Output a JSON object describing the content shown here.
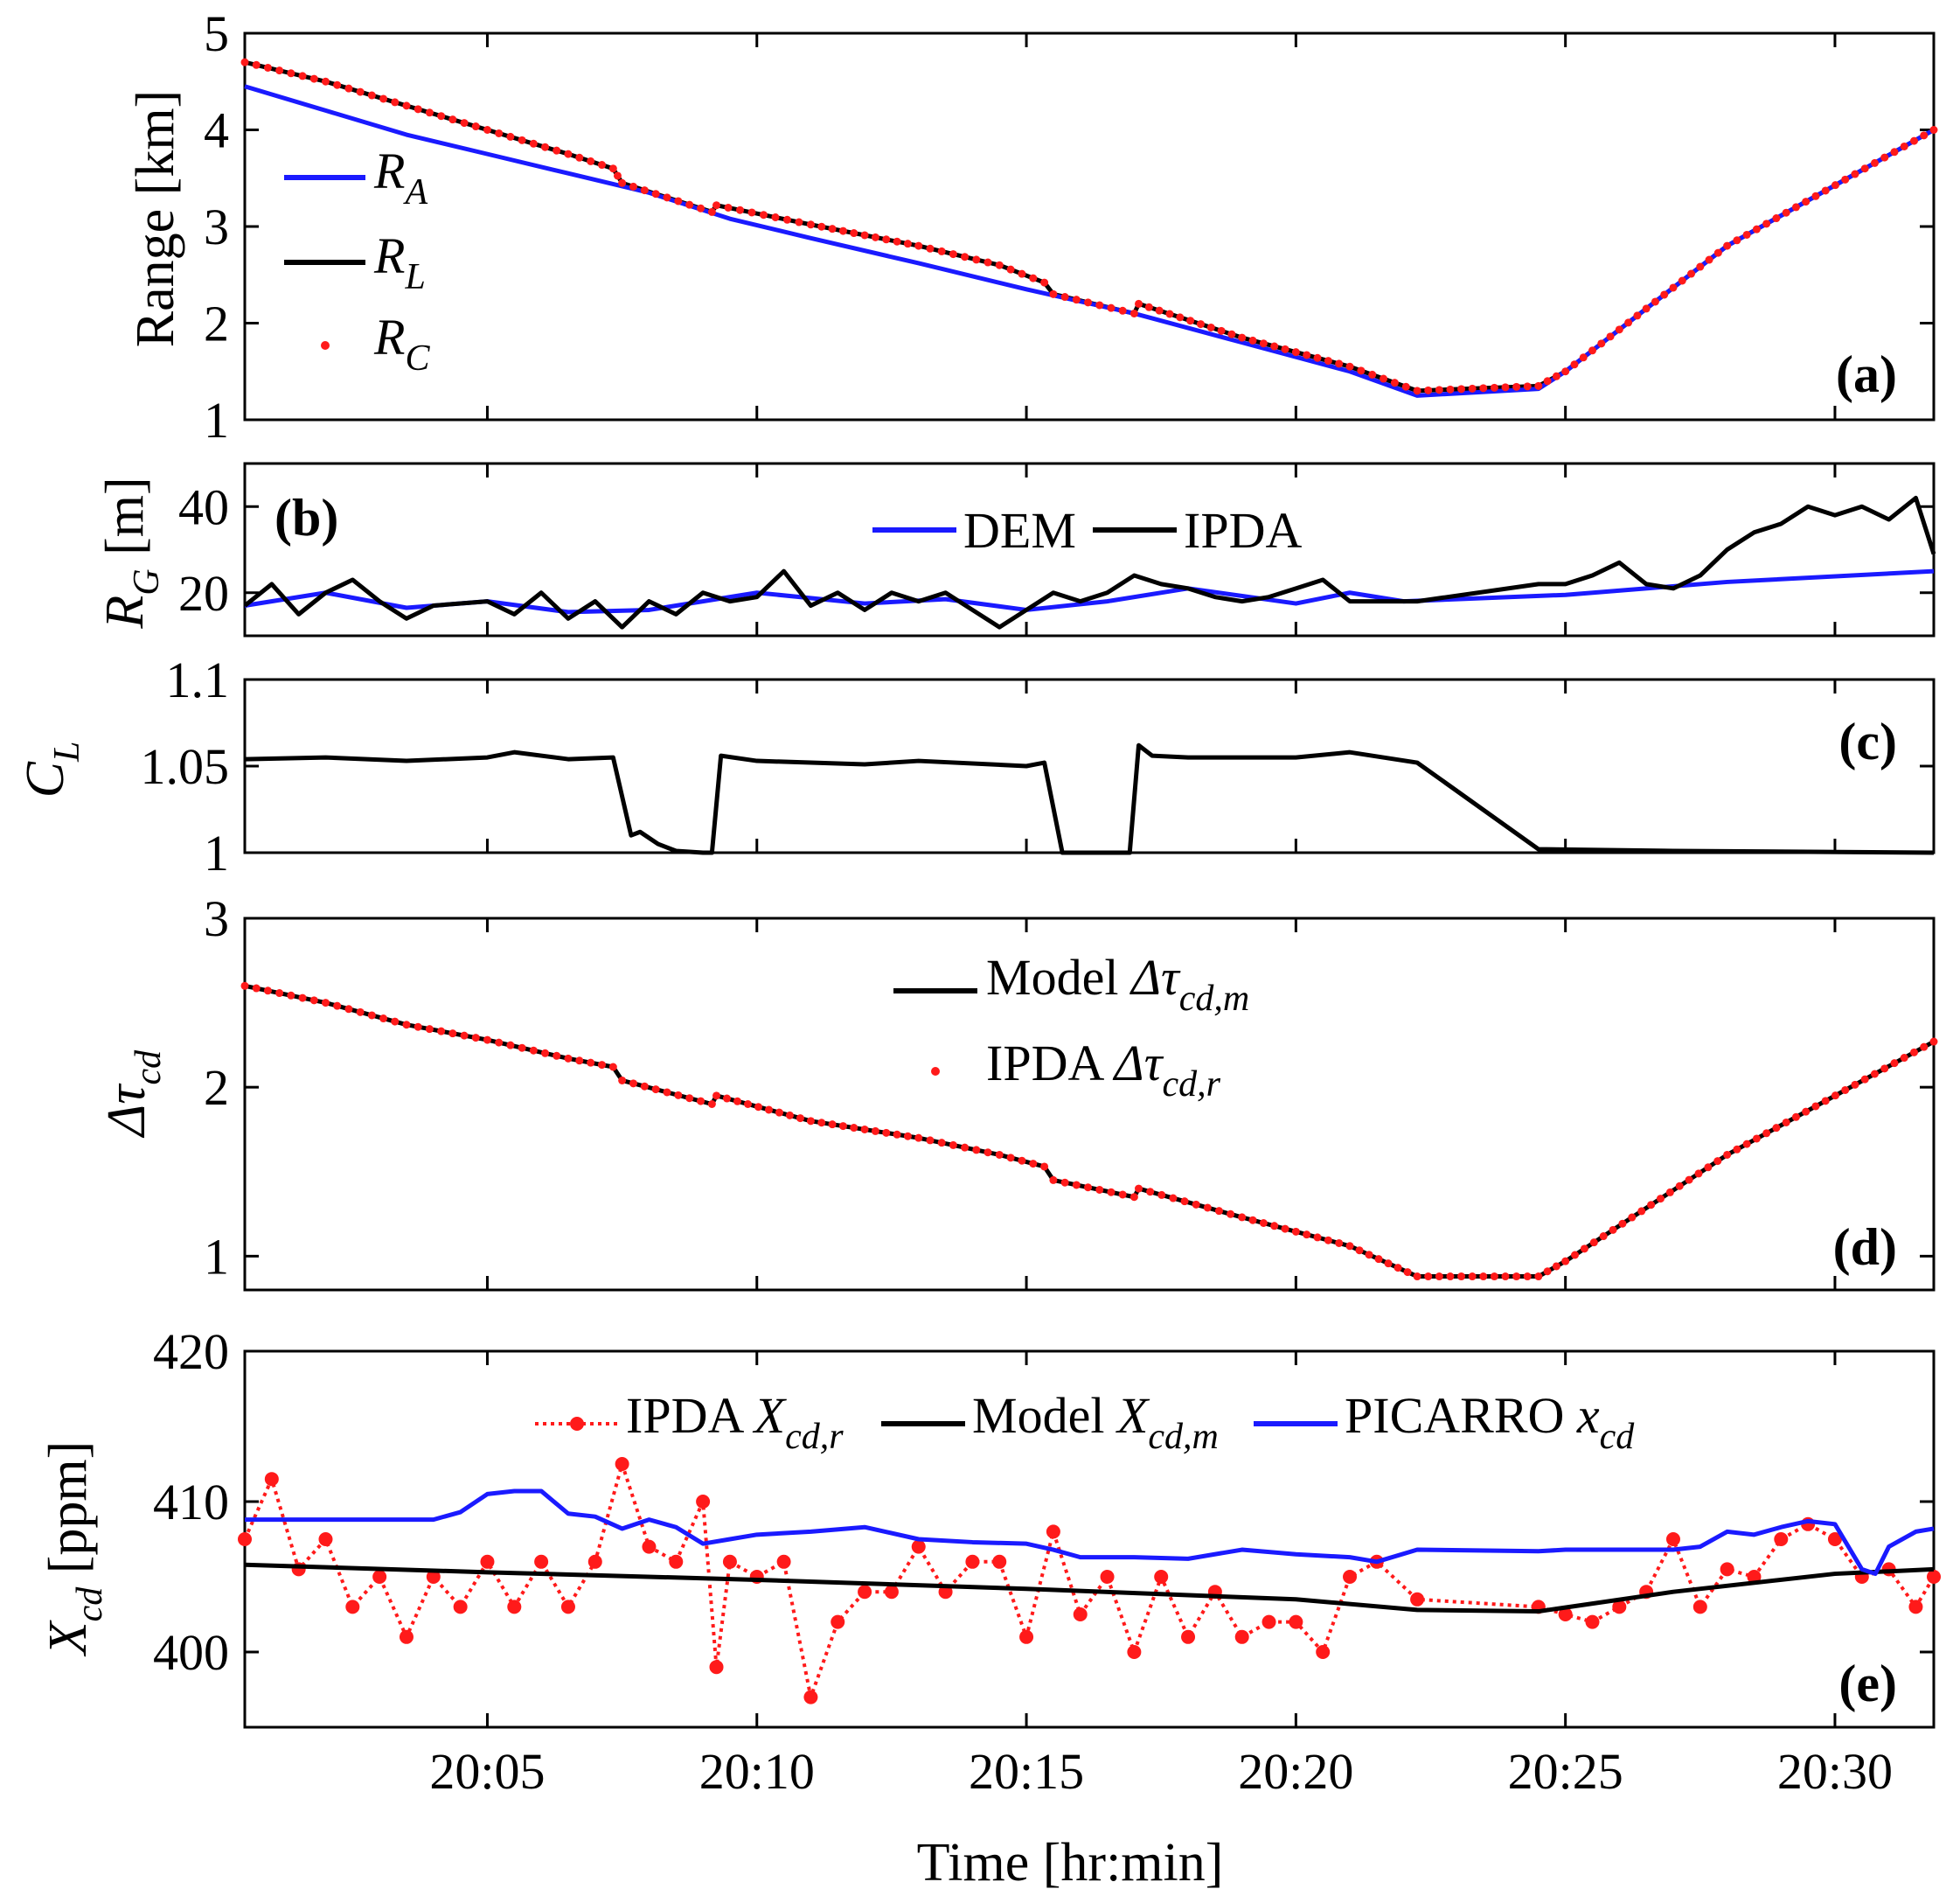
{
  "xlabel": "Time [hr:min]",
  "x_ticks": [
    "20:05",
    "20:10",
    "20:15",
    "20:20",
    "20:25",
    "20:30"
  ],
  "colors": {
    "blue": "#1a1aff",
    "black": "#000000",
    "red": "#ff1a1a"
  },
  "chart_data": [
    {
      "type": "line",
      "panel_label": "(a)",
      "ylabel": "Range [km]",
      "ylim": [
        1,
        5
      ],
      "y_ticks": [
        "1",
        "2",
        "3",
        "4",
        "5"
      ],
      "legend": {
        "location": "left",
        "entries": [
          {
            "main": "R",
            "sub": "A",
            "color": "blue",
            "style": "line"
          },
          {
            "main": "R",
            "sub": "L",
            "color": "black",
            "style": "line"
          },
          {
            "main": "R",
            "sub": "C",
            "color": "red",
            "style": "dot"
          }
        ]
      },
      "series": [
        {
          "name": "R_L",
          "color": "black",
          "x": [
            "20:00:30",
            "20:02:00",
            "20:03:30",
            "20:05:00",
            "20:06:30",
            "20:07:20",
            "20:07:30",
            "20:09:10",
            "20:09:15",
            "20:11:00",
            "20:13:00",
            "20:14:30",
            "20:15:20",
            "20:15:30",
            "20:17:00",
            "20:17:05",
            "20:19:00",
            "20:21:00",
            "20:22:15",
            "20:24:30",
            "20:25:00",
            "20:28:00",
            "20:31:50"
          ],
          "values": [
            4.7,
            4.5,
            4.25,
            4.0,
            3.75,
            3.6,
            3.45,
            3.15,
            3.22,
            3.02,
            2.8,
            2.6,
            2.42,
            2.3,
            2.1,
            2.2,
            1.85,
            1.55,
            1.3,
            1.35,
            1.5,
            2.8,
            4.0
          ]
        },
        {
          "name": "R_A",
          "color": "blue",
          "x": [
            "20:00:30",
            "20:02:00",
            "20:03:30",
            "20:05:00",
            "20:06:30",
            "20:08:00",
            "20:09:30",
            "20:11:00",
            "20:13:00",
            "20:15:00",
            "20:17:00",
            "20:19:00",
            "20:21:00",
            "20:22:15",
            "20:24:30",
            "20:25:00",
            "20:28:00",
            "20:31:50"
          ],
          "values": [
            4.45,
            4.2,
            3.95,
            3.75,
            3.55,
            3.35,
            3.08,
            2.88,
            2.62,
            2.35,
            2.1,
            1.8,
            1.5,
            1.25,
            1.32,
            1.5,
            2.8,
            4.0
          ]
        },
        {
          "name": "R_C",
          "color": "red",
          "style": "dot",
          "x": [
            "20:00:30",
            "20:02:00",
            "20:03:30",
            "20:05:00",
            "20:06:30",
            "20:07:20",
            "20:07:30",
            "20:09:10",
            "20:09:15",
            "20:11:00",
            "20:13:00",
            "20:14:30",
            "20:15:20",
            "20:15:30",
            "20:17:00",
            "20:17:05",
            "20:19:00",
            "20:21:00",
            "20:22:15",
            "20:24:30",
            "20:25:00",
            "20:28:00",
            "20:31:50"
          ],
          "values": [
            4.7,
            4.5,
            4.25,
            4.0,
            3.75,
            3.6,
            3.45,
            3.15,
            3.22,
            3.02,
            2.8,
            2.6,
            2.42,
            2.3,
            2.1,
            2.2,
            1.85,
            1.55,
            1.3,
            1.35,
            1.5,
            2.8,
            4.0
          ]
        }
      ]
    },
    {
      "type": "line",
      "panel_label": "(b)",
      "ylabel": {
        "main": "R",
        "sub": "G",
        "unit": "[m]"
      },
      "ylim": [
        10,
        50
      ],
      "y_ticks": [
        "20",
        "40"
      ],
      "legend": {
        "location": "top-center",
        "entries": [
          {
            "label": "DEM",
            "color": "blue",
            "style": "line"
          },
          {
            "label": "IPDA",
            "color": "black",
            "style": "line"
          }
        ]
      },
      "series": [
        {
          "name": "DEM",
          "color": "blue",
          "x": [
            "20:00:30",
            "20:02:00",
            "20:03:30",
            "20:05:00",
            "20:06:30",
            "20:08:00",
            "20:10:00",
            "20:12:00",
            "20:13:30",
            "20:15:00",
            "20:16:30",
            "20:18:00",
            "20:20:00",
            "20:21:00",
            "20:22:00",
            "20:25:00",
            "20:28:00",
            "20:31:50"
          ],
          "values": [
            17,
            20,
            16.5,
            18,
            15.5,
            16,
            20,
            17.5,
            18.5,
            16,
            18,
            21,
            17.5,
            20,
            18,
            19.5,
            22.5,
            25
          ]
        },
        {
          "name": "IPDA",
          "color": "black",
          "x": [
            "20:00:30",
            "20:01:00",
            "20:01:30",
            "20:02:00",
            "20:02:30",
            "20:03:00",
            "20:03:30",
            "20:04:00",
            "20:05:00",
            "20:05:30",
            "20:06:00",
            "20:06:30",
            "20:07:00",
            "20:07:30",
            "20:08:00",
            "20:08:30",
            "20:09:00",
            "20:09:30",
            "20:10:00",
            "20:10:30",
            "20:11:00",
            "20:11:30",
            "20:12:00",
            "20:12:30",
            "20:13:00",
            "20:13:30",
            "20:14:00",
            "20:14:30",
            "20:15:00",
            "20:15:30",
            "20:16:00",
            "20:16:30",
            "20:17:00",
            "20:17:30",
            "20:18:00",
            "20:18:30",
            "20:19:00",
            "20:19:30",
            "20:20:00",
            "20:20:30",
            "20:21:00",
            "20:22:15",
            "20:24:30",
            "20:25:00",
            "20:25:30",
            "20:26:00",
            "20:26:30",
            "20:27:00",
            "20:27:30",
            "20:28:00",
            "20:28:30",
            "20:29:00",
            "20:29:30",
            "20:30:00",
            "20:30:30",
            "20:31:00",
            "20:31:30",
            "20:31:50"
          ],
          "values": [
            17,
            22,
            15,
            20,
            23,
            18,
            14,
            17,
            18,
            15,
            20,
            14,
            18,
            12,
            18,
            15,
            20,
            18,
            19,
            25,
            17,
            20,
            16,
            20,
            18,
            20,
            16,
            12,
            16,
            20,
            18,
            20,
            24,
            22,
            21,
            19,
            18,
            19,
            21,
            23,
            18,
            18,
            22,
            22,
            24,
            27,
            22,
            21,
            24,
            30,
            34,
            36,
            40,
            38,
            40,
            37,
            42,
            29
          ]
        }
      ]
    },
    {
      "type": "line",
      "panel_label": "(c)",
      "ylabel": {
        "main": "C",
        "sub": "L"
      },
      "ylim": [
        1,
        1.1
      ],
      "y_ticks": [
        "1",
        "1.05",
        "1.1"
      ],
      "series": [
        {
          "name": "C_L",
          "color": "black",
          "x": [
            "20:00:30",
            "20:02:00",
            "20:03:30",
            "20:05:00",
            "20:05:30",
            "20:06:30",
            "20:07:20",
            "20:07:40",
            "20:07:50",
            "20:08:10",
            "20:08:30",
            "20:09:00",
            "20:09:10",
            "20:09:20",
            "20:10:00",
            "20:12:00",
            "20:13:00",
            "20:15:00",
            "20:15:20",
            "20:15:40",
            "20:16:30",
            "20:16:55",
            "20:17:05",
            "20:17:20",
            "20:18:00",
            "20:20:00",
            "20:21:00",
            "20:22:15",
            "20:24:30",
            "20:27:00",
            "20:31:50"
          ],
          "values": [
            1.054,
            1.055,
            1.053,
            1.055,
            1.058,
            1.054,
            1.055,
            1.01,
            1.012,
            1.005,
            1.001,
            1.0,
            1.0,
            1.056,
            1.053,
            1.051,
            1.053,
            1.05,
            1.052,
            1.0,
            1.0,
            1.0,
            1.062,
            1.056,
            1.055,
            1.055,
            1.058,
            1.052,
            1.002,
            1.001,
            1.0
          ]
        }
      ]
    },
    {
      "type": "line",
      "panel_label": "(d)",
      "ylabel": {
        "main": "Δτ",
        "sub": "cd"
      },
      "ylim": [
        0.8,
        3
      ],
      "y_ticks": [
        "1",
        "2",
        "3"
      ],
      "legend": {
        "location": "top-center",
        "entries": [
          {
            "label": "Model ",
            "math": "Δτ",
            "sub": "cd,m",
            "color": "black",
            "style": "line"
          },
          {
            "label": "IPDA ",
            "math": "Δτ",
            "sub": "cd,r",
            "color": "red",
            "style": "dot"
          }
        ]
      },
      "series": [
        {
          "name": "Model",
          "color": "black",
          "x": [
            "20:00:30",
            "20:02:00",
            "20:03:30",
            "20:05:00",
            "20:06:30",
            "20:07:20",
            "20:07:30",
            "20:09:10",
            "20:09:15",
            "20:11:00",
            "20:13:00",
            "20:14:30",
            "20:15:20",
            "20:15:30",
            "20:17:00",
            "20:17:05",
            "20:19:00",
            "20:21:00",
            "20:22:15",
            "20:24:30",
            "20:25:00",
            "20:28:00",
            "20:31:50"
          ],
          "values": [
            2.6,
            2.5,
            2.37,
            2.28,
            2.17,
            2.12,
            2.04,
            1.9,
            1.95,
            1.8,
            1.7,
            1.6,
            1.53,
            1.45,
            1.35,
            1.4,
            1.23,
            1.06,
            0.88,
            0.88,
            0.97,
            1.6,
            2.27
          ]
        },
        {
          "name": "IPDA",
          "color": "red",
          "style": "dot",
          "x": [
            "20:00:30",
            "20:02:00",
            "20:03:30",
            "20:05:00",
            "20:06:30",
            "20:07:20",
            "20:07:30",
            "20:09:10",
            "20:09:15",
            "20:11:00",
            "20:13:00",
            "20:14:30",
            "20:15:20",
            "20:15:30",
            "20:17:00",
            "20:17:05",
            "20:19:00",
            "20:21:00",
            "20:22:15",
            "20:24:30",
            "20:25:00",
            "20:28:00",
            "20:31:50"
          ],
          "values": [
            2.6,
            2.5,
            2.37,
            2.28,
            2.17,
            2.12,
            2.04,
            1.9,
            1.95,
            1.8,
            1.7,
            1.6,
            1.53,
            1.45,
            1.35,
            1.4,
            1.23,
            1.06,
            0.88,
            0.88,
            0.97,
            1.6,
            2.27
          ]
        }
      ]
    },
    {
      "type": "line",
      "panel_label": "(e)",
      "ylabel": {
        "main": "X",
        "sub": "cd",
        "unit": "[ppm]"
      },
      "ylim": [
        395,
        420
      ],
      "y_ticks": [
        "400",
        "410",
        "420"
      ],
      "legend": {
        "location": "top-center",
        "entries": [
          {
            "label": "IPDA ",
            "math": "X",
            "sub": "cd,r",
            "color": "red",
            "style": "dot-line"
          },
          {
            "label": "Model ",
            "math": "X",
            "sub": "cd,m",
            "color": "black",
            "style": "line"
          },
          {
            "label": "PICARRO ",
            "math": "x",
            "sub": "cd",
            "color": "blue",
            "style": "line"
          }
        ]
      },
      "series": [
        {
          "name": "IPDA",
          "color": "red",
          "style": "dot-line",
          "x": [
            "20:00:30",
            "20:01:00",
            "20:01:30",
            "20:02:00",
            "20:02:30",
            "20:03:00",
            "20:03:30",
            "20:04:00",
            "20:04:30",
            "20:05:00",
            "20:05:30",
            "20:06:00",
            "20:06:30",
            "20:07:00",
            "20:07:30",
            "20:08:00",
            "20:08:30",
            "20:09:00",
            "20:09:15",
            "20:09:30",
            "20:10:00",
            "20:10:30",
            "20:11:00",
            "20:11:30",
            "20:12:00",
            "20:12:30",
            "20:13:00",
            "20:13:30",
            "20:14:00",
            "20:14:30",
            "20:15:00",
            "20:15:30",
            "20:16:00",
            "20:16:30",
            "20:17:00",
            "20:17:30",
            "20:18:00",
            "20:18:30",
            "20:19:00",
            "20:19:30",
            "20:20:00",
            "20:20:30",
            "20:21:00",
            "20:21:30",
            "20:22:15",
            "20:24:30",
            "20:25:00",
            "20:25:30",
            "20:26:00",
            "20:26:30",
            "20:27:00",
            "20:27:30",
            "20:28:00",
            "20:28:30",
            "20:29:00",
            "20:29:30",
            "20:30:00",
            "20:30:30",
            "20:31:00",
            "20:31:30",
            "20:31:50"
          ],
          "values": [
            407.5,
            411.5,
            405.5,
            407.5,
            403,
            405,
            401,
            405,
            403,
            406,
            403,
            406,
            403,
            406,
            412.5,
            407,
            406,
            410,
            399,
            406,
            405,
            406,
            397,
            402,
            404,
            404,
            407,
            404,
            406,
            406,
            401,
            408,
            402.5,
            405,
            400,
            405,
            401,
            404,
            401,
            402,
            402,
            400,
            405,
            406,
            403.5,
            403,
            402.5,
            402,
            403,
            404,
            407.5,
            403,
            405.5,
            405,
            407.5,
            408.5,
            407.5,
            405,
            405.5,
            403,
            405
          ]
        },
        {
          "name": "Model",
          "color": "black",
          "x": [
            "20:00:30",
            "20:05:00",
            "20:10:00",
            "20:15:00",
            "20:20:00",
            "20:22:15",
            "20:24:30",
            "20:27:00",
            "20:30:00",
            "20:31:50"
          ],
          "values": [
            405.8,
            405.3,
            404.8,
            404.2,
            403.5,
            402.8,
            402.7,
            404.0,
            405.2,
            405.5
          ]
        },
        {
          "name": "PICARRO",
          "color": "blue",
          "x": [
            "20:00:30",
            "20:02:00",
            "20:04:00",
            "20:04:30",
            "20:05:00",
            "20:05:30",
            "20:06:00",
            "20:06:30",
            "20:07:00",
            "20:07:30",
            "20:08:00",
            "20:08:30",
            "20:09:00",
            "20:09:30",
            "20:10:00",
            "20:11:00",
            "20:12:00",
            "20:13:00",
            "20:14:00",
            "20:15:00",
            "20:15:30",
            "20:16:00",
            "20:17:00",
            "20:18:00",
            "20:19:00",
            "20:20:00",
            "20:21:00",
            "20:21:30",
            "20:22:15",
            "20:24:30",
            "20:25:00",
            "20:26:00",
            "20:27:00",
            "20:27:30",
            "20:28:00",
            "20:28:30",
            "20:29:00",
            "20:29:30",
            "20:30:00",
            "20:30:30",
            "20:30:45",
            "20:31:00",
            "20:31:30",
            "20:31:50"
          ],
          "values": [
            408.8,
            408.8,
            408.8,
            409.3,
            410.5,
            410.7,
            410.7,
            409.2,
            409.0,
            408.2,
            408.8,
            408.3,
            407.2,
            407.5,
            407.8,
            408.0,
            408.3,
            407.5,
            407.3,
            407.2,
            406.8,
            406.3,
            406.3,
            406.2,
            406.8,
            406.5,
            406.3,
            406.0,
            406.8,
            406.7,
            406.8,
            406.8,
            406.8,
            407.0,
            408.0,
            407.8,
            408.3,
            408.7,
            408.5,
            405.5,
            405.2,
            407.0,
            408.0,
            408.2
          ]
        }
      ]
    }
  ]
}
